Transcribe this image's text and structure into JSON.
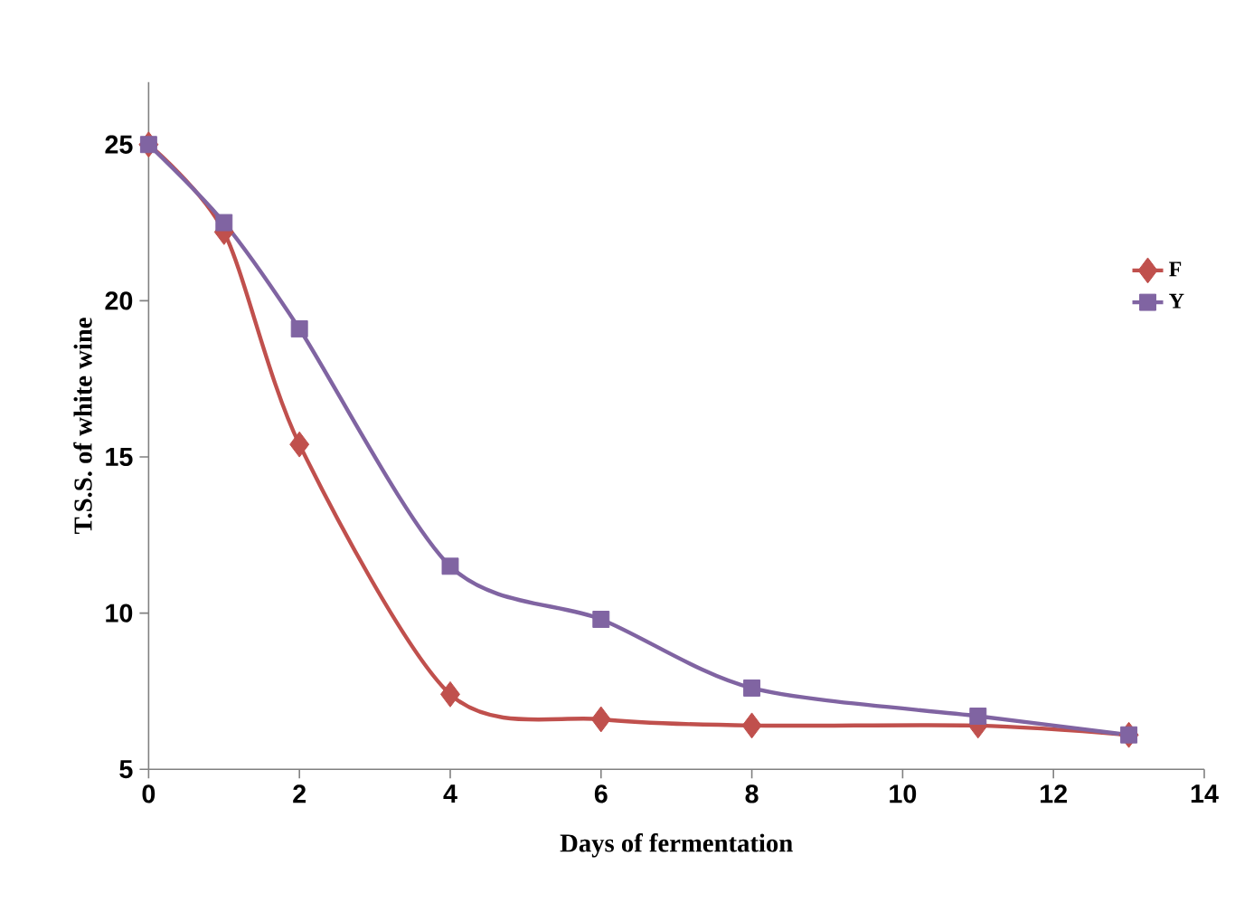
{
  "chart_data": {
    "type": "line",
    "xlabel": "Days of fermentation",
    "ylabel": "T.S.S. of white wine",
    "xlim": [
      0,
      14
    ],
    "xticks": [
      0,
      2,
      4,
      6,
      8,
      10,
      12,
      14
    ],
    "ylim": [
      5,
      27
    ],
    "yticks": [
      5,
      10,
      15,
      20,
      25
    ],
    "grid": false,
    "legend": "right",
    "series": [
      {
        "name": "F",
        "color": "#c0504d",
        "marker": "diamond",
        "x": [
          0,
          1,
          2,
          4,
          6,
          8,
          11,
          13
        ],
        "values": [
          25,
          22.2,
          15.4,
          7.4,
          6.6,
          6.4,
          6.4,
          6.1
        ]
      },
      {
        "name": "Y",
        "color": "#8064a2",
        "marker": "square",
        "x": [
          0,
          1,
          2,
          4,
          6,
          8,
          11,
          13
        ],
        "values": [
          25,
          22.5,
          19.1,
          11.5,
          9.8,
          7.6,
          6.7,
          6.1
        ]
      }
    ]
  }
}
